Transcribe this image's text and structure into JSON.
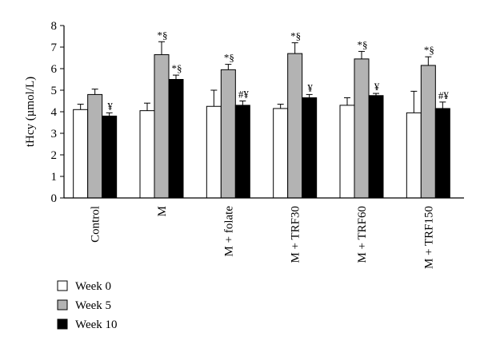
{
  "colors": {
    "week0": "#ffffff",
    "week5": "#b3b3b3",
    "week10": "#000000",
    "axis": "#000000"
  },
  "chart_data": {
    "type": "bar",
    "title": "",
    "xlabel": "",
    "ylabel": "tHcy (µmol/L)",
    "ylim": [
      0,
      8
    ],
    "yticks": [
      "0",
      "1",
      "2",
      "3",
      "4",
      "5",
      "6",
      "7",
      "8"
    ],
    "grid": false,
    "legend_position": "bottom-left",
    "categories": [
      "Control",
      "M",
      "M + folate",
      "M + TRF30",
      "M + TRF60",
      "M + TRF150"
    ],
    "series": [
      {
        "name": "Week 0",
        "values": [
          4.1,
          4.05,
          4.25,
          4.15,
          4.3,
          3.95
        ],
        "errors": [
          0.25,
          0.35,
          0.75,
          0.2,
          0.35,
          1.0
        ],
        "annotations": [
          "",
          "",
          "",
          "",
          "",
          ""
        ]
      },
      {
        "name": "Week 5",
        "values": [
          4.8,
          6.65,
          5.95,
          6.7,
          6.45,
          6.15
        ],
        "errors": [
          0.25,
          0.6,
          0.25,
          0.5,
          0.35,
          0.4
        ],
        "annotations": [
          "",
          "*§",
          "*§",
          "*§",
          "*§",
          "*§"
        ]
      },
      {
        "name": "Week 10",
        "values": [
          3.8,
          5.5,
          4.3,
          4.65,
          4.75,
          4.15
        ],
        "errors": [
          0.15,
          0.2,
          0.2,
          0.15,
          0.1,
          0.3
        ],
        "annotations": [
          "¥",
          "*§",
          "#¥",
          "¥",
          "¥",
          "#¥"
        ]
      }
    ]
  }
}
